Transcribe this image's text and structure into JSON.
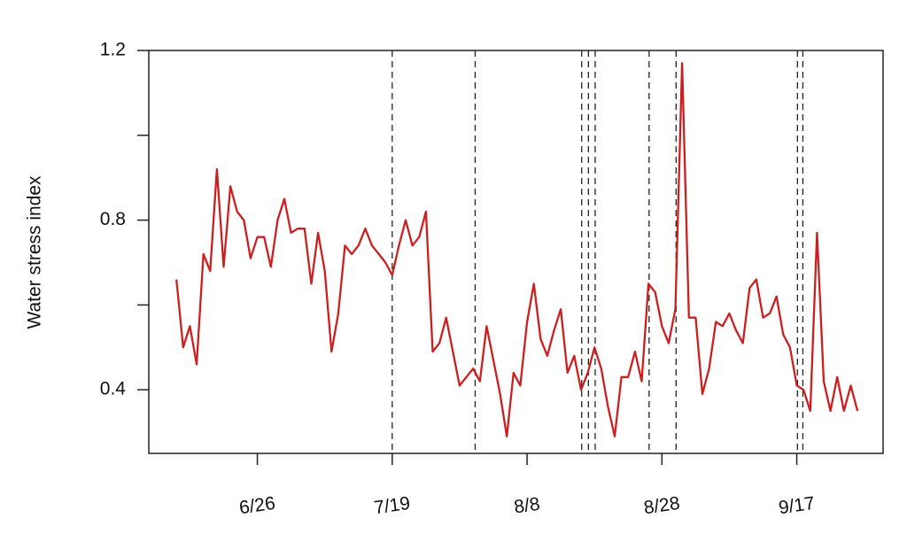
{
  "chart_data": {
    "type": "line",
    "ylabel": "Water stress index",
    "categories": [
      null,
      null,
      null,
      null,
      null,
      null,
      null,
      null,
      null,
      null,
      null,
      null,
      "6/26",
      null,
      null,
      null,
      null,
      null,
      null,
      null,
      null,
      null,
      null,
      null,
      null,
      null,
      null,
      null,
      null,
      null,
      null,
      null,
      "7/19",
      null,
      null,
      null,
      null,
      null,
      null,
      null,
      null,
      null,
      null,
      null,
      null,
      null,
      null,
      null,
      null,
      null,
      null,
      null,
      "8/8",
      null,
      null,
      null,
      null,
      null,
      null,
      null,
      null,
      null,
      null,
      null,
      null,
      null,
      null,
      null,
      null,
      null,
      null,
      null,
      "8/28",
      null,
      null,
      null,
      null,
      null,
      null,
      null,
      null,
      null,
      null,
      null,
      null,
      null,
      null,
      null,
      null,
      null,
      null,
      null,
      "9/17",
      null,
      null,
      null,
      null,
      null,
      null,
      null,
      null,
      null
    ],
    "series": [
      {
        "color": "#cc1f1f",
        "values": [
          0.66,
          0.5,
          0.55,
          0.46,
          0.72,
          0.68,
          0.92,
          0.69,
          0.88,
          0.82,
          0.8,
          0.71,
          0.76,
          0.76,
          0.69,
          0.8,
          0.85,
          0.77,
          0.78,
          0.78,
          0.65,
          0.77,
          0.68,
          0.49,
          0.58,
          0.74,
          0.72,
          0.74,
          0.78,
          0.74,
          0.72,
          0.7,
          0.67,
          0.74,
          0.8,
          0.74,
          0.76,
          0.82,
          0.49,
          0.51,
          0.57,
          0.49,
          0.41,
          0.43,
          0.45,
          0.42,
          0.55,
          0.47,
          0.39,
          0.29,
          0.44,
          0.41,
          0.56,
          0.65,
          0.52,
          0.48,
          0.54,
          0.59,
          0.44,
          0.48,
          0.4,
          0.44,
          0.5,
          0.45,
          0.36,
          0.29,
          0.43,
          0.43,
          0.49,
          0.42,
          0.65,
          0.63,
          0.55,
          0.51,
          0.59,
          1.17,
          0.57,
          0.57,
          0.39,
          0.45,
          0.56,
          0.55,
          0.58,
          0.54,
          0.51,
          0.64,
          0.66,
          0.57,
          0.58,
          0.62,
          0.53,
          0.5,
          0.41,
          0.4,
          0.35,
          0.77,
          0.42,
          0.35,
          0.43,
          0.35,
          0.41,
          0.35
        ]
      }
    ],
    "xlim": [
      -4.1,
      104.8
    ],
    "vlines": [
      32,
      44.3,
      60.1,
      61.1,
      62.1,
      70.1,
      74.1,
      92.1,
      92.9
    ],
    "ylim": [
      0.25,
      1.2
    ],
    "yticks": [
      0.4,
      0.8,
      1.2
    ],
    "yminor_ticks": [
      0.6,
      1.0
    ]
  }
}
